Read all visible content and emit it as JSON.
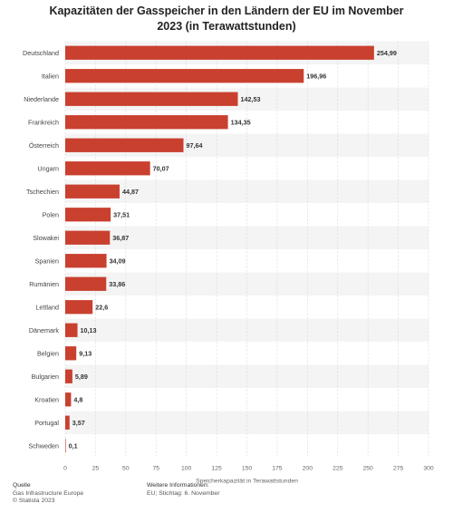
{
  "title": "Kapazitäten der Gasspeicher in den Ländern der EU im November 2023 (in Terawattstunden)",
  "chart_data": {
    "type": "bar",
    "orientation": "horizontal",
    "categories": [
      "Deutschland",
      "Italien",
      "Niederlande",
      "Frankreich",
      "Österreich",
      "Ungarn",
      "Tschechien",
      "Polen",
      "Slowakei",
      "Spanien",
      "Rumänien",
      "Lettland",
      "Dänemark",
      "Belgien",
      "Bulgarien",
      "Kroatien",
      "Portugal",
      "Schweden"
    ],
    "values": [
      254.99,
      196.96,
      142.53,
      134.35,
      97.64,
      70.07,
      44.87,
      37.51,
      36.87,
      34.09,
      33.86,
      22.6,
      10.13,
      9.13,
      5.89,
      4.8,
      3.57,
      0.1
    ],
    "value_labels": [
      "254,99",
      "196,96",
      "142,53",
      "134,35",
      "97,64",
      "70,07",
      "44,87",
      "37,51",
      "36,87",
      "34,09",
      "33,86",
      "22,6",
      "10,13",
      "9,13",
      "5,89",
      "4,8",
      "3,57",
      "0,1"
    ],
    "xlabel": "Speicherkapazität in Terawattstunden",
    "xlim": [
      0,
      300
    ],
    "xticks": [
      0,
      25,
      50,
      75,
      100,
      125,
      150,
      175,
      200,
      225,
      250,
      275,
      300
    ],
    "grid": true,
    "bar_color": "#c9402f"
  },
  "footer": {
    "source_heading": "Quelle",
    "source_line1": "Gas Infrastructure Europe",
    "source_line2": "© Statista 2023",
    "info_heading": "Weitere Informationen:",
    "info_line1": "EU; Stichtag: 6. November"
  }
}
